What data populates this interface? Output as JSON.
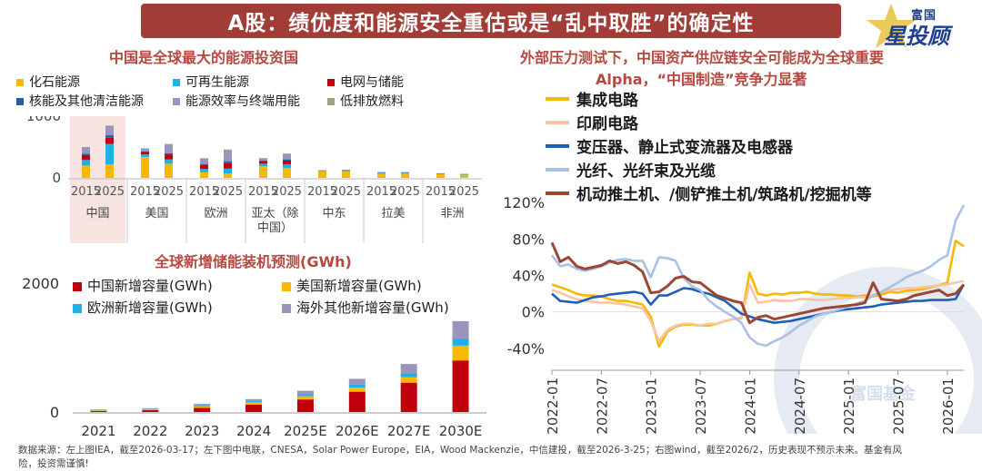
{
  "banner": {
    "title": "A股：绩优度和能源安全重估或是“乱中取胜”的确定性"
  },
  "logo": {
    "line1": "富国",
    "line2": "星投顾",
    "watermark": "富国基金"
  },
  "colors": {
    "fossil": "#f6b800",
    "renew": "#1fb0e6",
    "grid": "#c0000d",
    "nuclear": "#1f5fb4",
    "efficiency": "#9a95bd",
    "lowemission": "#a89f85",
    "cn_storage": "#c0000d",
    "us_storage": "#f6b800",
    "eu_storage": "#1fb0e6",
    "other_storage": "#9a95bd",
    "ic": "#f6b800",
    "pcb": "#f6c4a6",
    "transformer": "#1f5fb4",
    "fiber": "#a9c1e6",
    "machinery": "#9c4734"
  },
  "chart_data": [
    {
      "type": "bar",
      "stacked": true,
      "title": "中国是全球最大的能源投资国",
      "regions": [
        "中国",
        "美国",
        "欧洲",
        "亚太（除中国）",
        "中东",
        "拉美",
        "非洲"
      ],
      "years": [
        "2015",
        "2025"
      ],
      "ylim": [
        0,
        1000
      ],
      "yticks": [
        0,
        1000
      ],
      "series": [
        {
          "name": "化石能源",
          "color": "#f6b800",
          "values": [
            [
              200,
              220
            ],
            [
              340,
              230
            ],
            [
              90,
              70
            ],
            [
              190,
              160
            ],
            [
              110,
              110
            ],
            [
              70,
              70
            ],
            [
              60,
              50
            ]
          ]
        },
        {
          "name": "可再生能源",
          "color": "#1fb0e6",
          "values": [
            [
              90,
              330
            ],
            [
              40,
              70
            ],
            [
              55,
              80
            ],
            [
              40,
              60
            ],
            [
              5,
              10
            ],
            [
              15,
              15
            ],
            [
              10,
              10
            ]
          ]
        },
        {
          "name": "电网与储能",
          "color": "#c0000d",
          "values": [
            [
              80,
              100
            ],
            [
              40,
              80
            ],
            [
              60,
              90
            ],
            [
              40,
              60
            ],
            [
              5,
              5
            ],
            [
              5,
              5
            ],
            [
              3,
              3
            ]
          ]
        },
        {
          "name": "核能及其他清洁能源",
          "color": "#1f5fb4",
          "values": [
            [
              20,
              40
            ],
            [
              10,
              20
            ],
            [
              20,
              30
            ],
            [
              10,
              20
            ],
            [
              0,
              0
            ],
            [
              0,
              0
            ],
            [
              0,
              0
            ]
          ]
        },
        {
          "name": "能源效率与终端用能",
          "color": "#9a95bd",
          "values": [
            [
              110,
              150
            ],
            [
              40,
              130
            ],
            [
              90,
              180
            ],
            [
              40,
              90
            ],
            [
              5,
              5
            ],
            [
              5,
              5
            ],
            [
              3,
              3
            ]
          ]
        },
        {
          "name": "低排放燃料",
          "color": "#a89f85",
          "values": [
            [
              0,
              10
            ],
            [
              10,
              20
            ],
            [
              5,
              10
            ],
            [
              0,
              5
            ],
            [
              0,
              0
            ],
            [
              0,
              0
            ],
            [
              0,
              0
            ]
          ]
        }
      ]
    },
    {
      "type": "bar",
      "stacked": true,
      "title": "全球新增储能装机预测(GWh)",
      "categories": [
        "2021",
        "2022",
        "2023",
        "2024",
        "2025E",
        "2026E",
        "2027E",
        "2030E"
      ],
      "ylim": [
        0,
        2000
      ],
      "yticks": [
        0,
        2000
      ],
      "series": [
        {
          "name": "中国新增容量(GWh)",
          "color": "#c0000d",
          "values": [
            15,
            30,
            65,
            115,
            195,
            315,
            455,
            800
          ]
        },
        {
          "name": "美国新增容量(GWh)",
          "color": "#f6b800",
          "values": [
            10,
            15,
            25,
            35,
            50,
            65,
            85,
            230
          ]
        },
        {
          "name": "欧洲新增容量(GWh)",
          "color": "#1fb0e6",
          "values": [
            5,
            5,
            15,
            20,
            30,
            45,
            60,
            110
          ]
        },
        {
          "name": "海外其他新增容量(GWh)",
          "color": "#9a95bd",
          "values": [
            10,
            10,
            20,
            30,
            55,
            90,
            145,
            270
          ]
        }
      ]
    },
    {
      "type": "line",
      "title": "外部压力测试下，中国资产供应链安全可能成为全球重要Alpha，“中国制造”竞争力显著",
      "title_line1": "外部压力测试下，中国资产供应链安全可能成为全球重要",
      "title_line2": "Alpha，“中国制造”竞争力显著",
      "ylim": [
        -60,
        130
      ],
      "yticks": [
        120,
        80,
        40,
        0,
        -40
      ],
      "ytick_labels": [
        "120%",
        "80%",
        "40%",
        "0%",
        "-40%"
      ],
      "xticks": [
        "2022-01",
        "2022-07",
        "2023-01",
        "2023-07",
        "2024-01",
        "2024-07",
        "2025-01",
        "2025-07",
        "2026-01"
      ],
      "n_points": 51,
      "series": [
        {
          "name": "集成电路",
          "color": "#f6b800",
          "values": [
            30,
            27,
            24,
            20,
            18,
            18,
            17,
            14,
            12,
            12,
            10,
            8,
            -5,
            -38,
            -22,
            -16,
            -14,
            -14,
            -15,
            -15,
            -13,
            -10,
            -8,
            -7,
            43,
            20,
            18,
            20,
            19,
            21,
            21,
            22,
            20,
            19,
            19,
            18,
            18,
            17,
            18,
            17,
            19,
            22,
            21,
            23,
            24,
            25,
            27,
            29,
            32,
            78,
            72
          ]
        },
        {
          "name": "印刷电路",
          "color": "#f6c4a6",
          "values": [
            24,
            21,
            17,
            14,
            12,
            11,
            10,
            10,
            9,
            8,
            6,
            4,
            -10,
            -32,
            -20,
            -15,
            -13,
            -13,
            -15,
            -13,
            -13,
            -10,
            -8,
            -6,
            30,
            10,
            11,
            13,
            12,
            12,
            14,
            14,
            13,
            13,
            14,
            15,
            15,
            16,
            16,
            19,
            22,
            24,
            25,
            26,
            26,
            27,
            28,
            29,
            30,
            32,
            34
          ]
        },
        {
          "name": "变压器、静止式变流器及电感器",
          "color": "#1f5fb4",
          "values": [
            20,
            12,
            11,
            10,
            13,
            16,
            17,
            19,
            20,
            21,
            22,
            20,
            8,
            18,
            18,
            22,
            26,
            25,
            22,
            20,
            16,
            12,
            5,
            -2,
            -5,
            -8,
            -10,
            -12,
            -11,
            -10,
            -8,
            -6,
            -4,
            -2,
            0,
            2,
            3,
            4,
            5,
            6,
            8,
            9,
            10,
            11,
            12,
            12,
            13,
            13,
            13,
            14,
            30
          ]
        },
        {
          "name": "光纤、光纤束及光缆",
          "color": "#a9c1e6",
          "values": [
            62,
            50,
            52,
            47,
            45,
            47,
            50,
            54,
            57,
            58,
            56,
            56,
            38,
            60,
            59,
            56,
            37,
            28,
            24,
            13,
            6,
            0,
            -5,
            -12,
            -28,
            -35,
            -37,
            -32,
            -28,
            -22,
            -15,
            -10,
            -5,
            -2,
            0,
            3,
            6,
            9,
            12,
            18,
            22,
            27,
            32,
            38,
            42,
            45,
            50,
            57,
            62,
            100,
            117
          ]
        },
        {
          "name": "机动推土机、/侧铲推土机/筑路机/挖掘机等",
          "color": "#9c4734",
          "values": [
            76,
            55,
            60,
            50,
            47,
            49,
            51,
            56,
            53,
            55,
            51,
            44,
            21,
            22,
            28,
            37,
            39,
            33,
            32,
            25,
            18,
            15,
            12,
            10,
            -12,
            -6,
            -4,
            -8,
            -6,
            -4,
            -2,
            0,
            2,
            4,
            5,
            6,
            7,
            8,
            10,
            32,
            14,
            13,
            12,
            14,
            18,
            20,
            22,
            24,
            18,
            20,
            30
          ]
        }
      ]
    }
  ],
  "footer": {
    "line1": "数据来源：左上图IEA，截至2026-03-17；左下图中电联，CNESA，Solar Power Europe，EIA，Wood Mackenzie，中信建投，截至2026-3-25；右图wind，截至2026/2，历史表现不预示未来。基金有风",
    "line2": "险，投资需谨慎!"
  }
}
